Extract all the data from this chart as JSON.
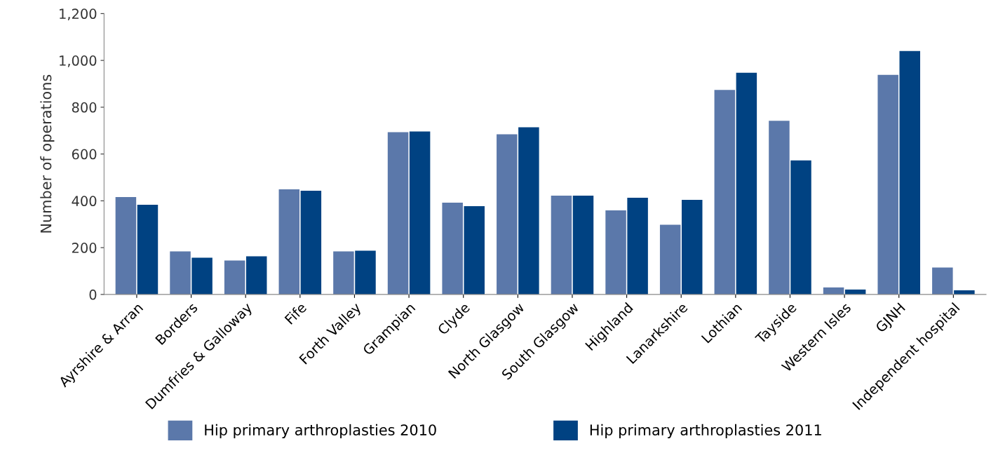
{
  "chart_data": {
    "type": "bar",
    "ylabel": "Number of operations",
    "categories": [
      "Ayrshire & Arran",
      "Borders",
      "Dumfries & Galloway",
      "Fife",
      "Forth Valley",
      "Grampian",
      "Clyde",
      "North Glasgow",
      "South Glasgow",
      "Highland",
      "Lanarkshire",
      "Lothian",
      "Tayside",
      "Western Isles",
      "GJNH",
      "Independent hospital"
    ],
    "series": [
      {
        "name": "Hip primary arthroplasties 2010",
        "color": "#5b78aa",
        "values": [
          416,
          184,
          145,
          449,
          184,
          693,
          392,
          684,
          422,
          359,
          298,
          874,
          742,
          30,
          938,
          115
        ]
      },
      {
        "name": "Hip primary arthroplasties 2011",
        "color": "#004282",
        "values": [
          383,
          157,
          163,
          443,
          187,
          696,
          377,
          714,
          422,
          413,
          404,
          947,
          573,
          21,
          1040,
          18
        ]
      }
    ],
    "ylim": [
      0,
      1200
    ],
    "yticks": [
      0,
      200,
      400,
      600,
      800,
      {
        "value": 1000,
        "label": "1,000"
      },
      {
        "value": 1200,
        "label": "1,200"
      }
    ],
    "grid": false,
    "legend": "bottom"
  }
}
